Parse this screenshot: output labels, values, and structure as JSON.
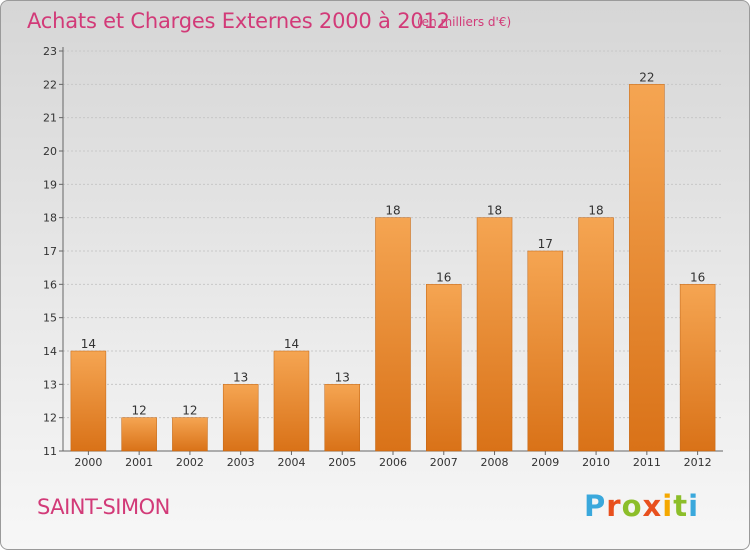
{
  "header": {
    "title": "Achats et Charges Externes 2000 à 2012",
    "subtitle": "(en milliers d'€)"
  },
  "footer": {
    "location": "SAINT-SIMON",
    "logo_letters": [
      "P",
      "r",
      "o",
      "x",
      "i",
      "t",
      "i"
    ],
    "logo_colors": [
      "#3aa8dc",
      "#e8501e",
      "#8cbe2a",
      "#e8501e",
      "#f5a800",
      "#8cbe2a",
      "#3aa8dc"
    ]
  },
  "colors": {
    "bar_top": "#f5a552",
    "bar_bottom": "#d97218",
    "bar_edge": "#c0620f",
    "axis": "#666666",
    "grid": "#c8c8c8"
  },
  "chart_data": {
    "type": "bar",
    "title": "Achats et Charges Externes 2000 à 2012",
    "subtitle": "(en milliers d'€)",
    "categories": [
      "2000",
      "2001",
      "2002",
      "2003",
      "2004",
      "2005",
      "2006",
      "2007",
      "2008",
      "2009",
      "2010",
      "2011",
      "2012"
    ],
    "values": [
      14,
      12,
      12,
      13,
      14,
      13,
      18,
      16,
      18,
      17,
      18,
      22,
      16
    ],
    "ylim": [
      11,
      23
    ],
    "yticks": [
      11,
      12,
      13,
      14,
      15,
      16,
      17,
      18,
      19,
      20,
      21,
      22,
      23
    ],
    "grid": true,
    "data_labels": true
  }
}
